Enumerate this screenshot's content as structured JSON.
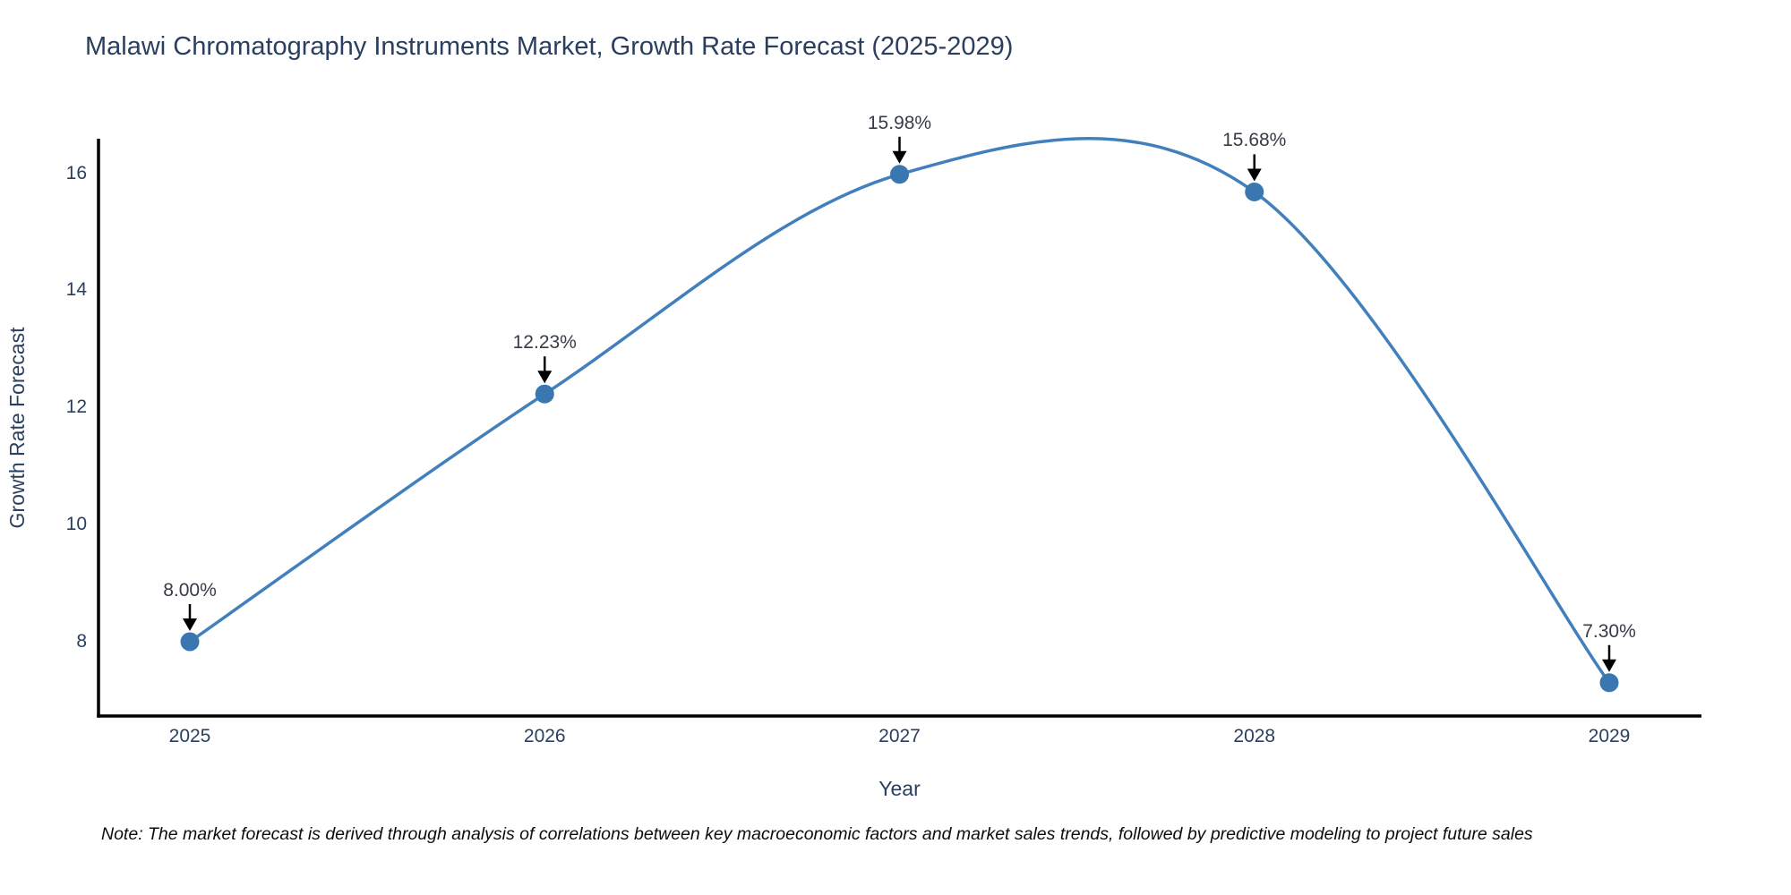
{
  "title": "Malawi Chromatography Instruments Market, Growth Rate Forecast (2025-2029)",
  "note": "Note: The market forecast is derived through analysis of correlations between key macroeconomic factors and market sales trends, followed by predictive modeling to project future sales",
  "chart_data": {
    "type": "line",
    "title": "Malawi Chromatography Instruments Market, Growth Rate Forecast (2025-2029)",
    "xlabel": "Year",
    "ylabel": "Growth Rate Forecast",
    "x": [
      2025,
      2026,
      2027,
      2028,
      2029
    ],
    "x_ticklabels": [
      "2025",
      "2026",
      "2027",
      "2028",
      "2029"
    ],
    "series": [
      {
        "name": "Growth Rate Forecast",
        "values": [
          8.0,
          12.23,
          15.98,
          15.68,
          7.3
        ]
      }
    ],
    "data_labels": [
      "8.00%",
      "12.23%",
      "15.98%",
      "15.68%",
      "7.30%"
    ],
    "yticks": [
      8,
      10,
      12,
      14,
      16
    ],
    "y_ticklabels": [
      "8",
      "10",
      "12",
      "14",
      "16"
    ],
    "ylim": [
      6.73,
      16.6
    ],
    "line_smoothing": "spline",
    "grid": false,
    "legend": "none",
    "colors": {
      "line": "#4180bd",
      "marker": "#3a76af",
      "axis": "#000000",
      "arrow": "#000000",
      "title_text": "#2a3f5f",
      "tick_text": "#2a3f5f",
      "annotation_text": "#363c46",
      "background": "#ffffff"
    }
  }
}
